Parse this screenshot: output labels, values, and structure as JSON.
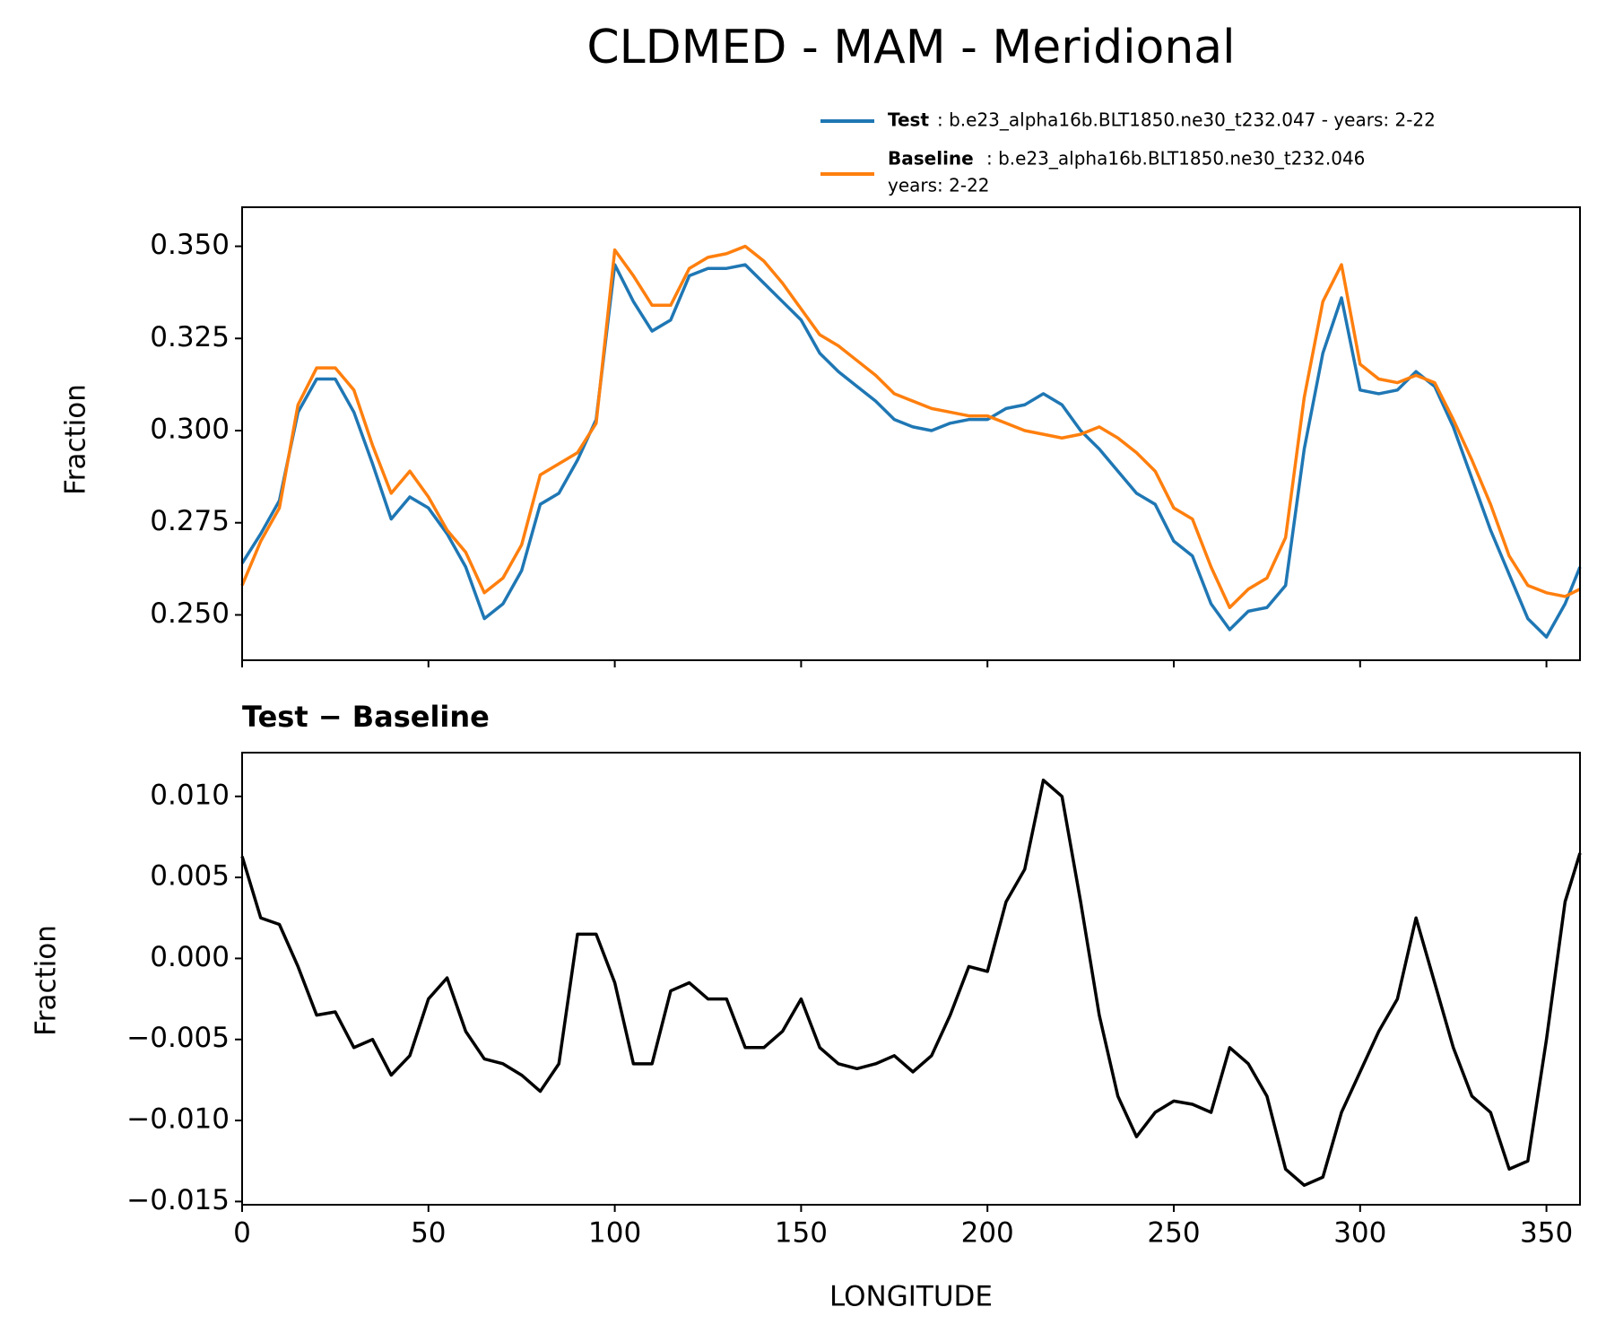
{
  "chart_data": [
    {
      "type": "line",
      "title": "CLDMED - MAM - Meridional",
      "ylabel": "Fraction",
      "x": [
        0,
        5,
        10,
        15,
        20,
        25,
        30,
        35,
        40,
        45,
        50,
        55,
        60,
        65,
        70,
        75,
        80,
        85,
        90,
        95,
        100,
        105,
        110,
        115,
        120,
        125,
        130,
        135,
        140,
        145,
        150,
        155,
        160,
        165,
        170,
        175,
        180,
        185,
        190,
        195,
        200,
        205,
        210,
        215,
        220,
        225,
        230,
        235,
        240,
        245,
        250,
        255,
        260,
        265,
        270,
        275,
        280,
        285,
        290,
        295,
        300,
        305,
        310,
        315,
        320,
        325,
        330,
        335,
        340,
        345,
        350,
        355,
        359
      ],
      "series": [
        {
          "name": "Test",
          "label": ": b.e23_alpha16b.BLT1850.ne30_t232.047 - years: 2-22",
          "color": "#1f77b4",
          "values": [
            0.264,
            0.272,
            0.281,
            0.305,
            0.314,
            0.314,
            0.305,
            0.291,
            0.276,
            0.282,
            0.279,
            0.272,
            0.263,
            0.249,
            0.253,
            0.262,
            0.28,
            0.283,
            0.292,
            0.303,
            0.345,
            0.335,
            0.327,
            0.33,
            0.342,
            0.344,
            0.344,
            0.345,
            0.34,
            0.335,
            0.33,
            0.321,
            0.316,
            0.312,
            0.308,
            0.303,
            0.301,
            0.3,
            0.302,
            0.303,
            0.303,
            0.306,
            0.307,
            0.31,
            0.307,
            0.3,
            0.295,
            0.289,
            0.283,
            0.28,
            0.27,
            0.266,
            0.253,
            0.246,
            0.251,
            0.252,
            0.258,
            0.295,
            0.321,
            0.336,
            0.311,
            0.31,
            0.311,
            0.316,
            0.312,
            0.301,
            0.287,
            0.273,
            0.261,
            0.249,
            0.244,
            0.253,
            0.263
          ]
        },
        {
          "name": "Baseline",
          "label_lines": [
            ": b.e23_alpha16b.BLT1850.ne30_t232.046",
            "years: 2-22"
          ],
          "color": "#ff7f0e",
          "values": [
            0.258,
            0.27,
            0.279,
            0.307,
            0.317,
            0.317,
            0.311,
            0.296,
            0.283,
            0.289,
            0.282,
            0.273,
            0.267,
            0.256,
            0.26,
            0.269,
            0.288,
            0.291,
            0.294,
            0.302,
            0.349,
            0.342,
            0.334,
            0.334,
            0.344,
            0.347,
            0.348,
            0.35,
            0.346,
            0.34,
            0.333,
            0.326,
            0.323,
            0.319,
            0.315,
            0.31,
            0.308,
            0.306,
            0.305,
            0.304,
            0.304,
            0.302,
            0.3,
            0.299,
            0.298,
            0.299,
            0.301,
            0.298,
            0.294,
            0.289,
            0.279,
            0.276,
            0.263,
            0.252,
            0.257,
            0.26,
            0.271,
            0.309,
            0.335,
            0.345,
            0.318,
            0.314,
            0.313,
            0.315,
            0.313,
            0.303,
            0.292,
            0.28,
            0.266,
            0.258,
            0.256,
            0.255,
            0.257
          ]
        }
      ],
      "xlim": [
        0,
        359
      ],
      "xticks": [
        0,
        50,
        100,
        150,
        200,
        250,
        300,
        350
      ],
      "ylim": [
        0.2377,
        0.3606
      ],
      "yticks": [
        {
          "value": 0.25,
          "label": "0.250"
        },
        {
          "value": 0.275,
          "label": "0.275"
        },
        {
          "value": 0.3,
          "label": "0.300"
        },
        {
          "value": 0.325,
          "label": "0.325"
        },
        {
          "value": 0.35,
          "label": "0.350"
        }
      ]
    },
    {
      "type": "line",
      "title": "Test − Baseline",
      "xlabel": "LONGITUDE",
      "ylabel": "Fraction",
      "x": [
        0,
        5,
        10,
        15,
        20,
        25,
        30,
        35,
        40,
        45,
        50,
        55,
        60,
        65,
        70,
        75,
        80,
        85,
        90,
        95,
        100,
        105,
        110,
        115,
        120,
        125,
        130,
        135,
        140,
        145,
        150,
        155,
        160,
        165,
        170,
        175,
        180,
        185,
        190,
        195,
        200,
        205,
        210,
        215,
        220,
        225,
        230,
        235,
        240,
        245,
        250,
        255,
        260,
        265,
        270,
        275,
        280,
        285,
        290,
        295,
        300,
        305,
        310,
        315,
        320,
        325,
        330,
        335,
        340,
        345,
        350,
        355,
        359
      ],
      "series": [
        {
          "color": "#000000",
          "values": [
            0.0063,
            0.0025,
            0.0021,
            -0.0005,
            -0.0035,
            -0.0033,
            -0.0055,
            -0.005,
            -0.0072,
            -0.006,
            -0.0025,
            -0.0012,
            -0.0045,
            -0.0062,
            -0.0065,
            -0.0072,
            -0.0082,
            -0.0065,
            0.0015,
            0.0015,
            -0.0015,
            -0.0065,
            -0.0065,
            -0.002,
            -0.0015,
            -0.0025,
            -0.0025,
            -0.0055,
            -0.0055,
            -0.0045,
            -0.0025,
            -0.0055,
            -0.0065,
            -0.0068,
            -0.0065,
            -0.006,
            -0.007,
            -0.006,
            -0.0035,
            -0.0005,
            -0.0008,
            0.0035,
            0.0055,
            0.011,
            0.01,
            0.0035,
            -0.0035,
            -0.0085,
            -0.011,
            -0.0095,
            -0.0088,
            -0.009,
            -0.0095,
            -0.0055,
            -0.0065,
            -0.0085,
            -0.013,
            -0.014,
            -0.0135,
            -0.0095,
            -0.007,
            -0.0045,
            -0.0025,
            0.0025,
            -0.0015,
            -0.0055,
            -0.0085,
            -0.0095,
            -0.013,
            -0.0125,
            -0.005,
            0.0035,
            0.0065
          ]
        }
      ],
      "xlim": [
        0,
        359
      ],
      "xticks": [
        0,
        50,
        100,
        150,
        200,
        250,
        300,
        350
      ],
      "ylim": [
        -0.0152,
        0.0127
      ],
      "yticks": [
        {
          "value": -0.015,
          "label": "−0.015"
        },
        {
          "value": -0.01,
          "label": "−0.010"
        },
        {
          "value": -0.005,
          "label": "−0.005"
        },
        {
          "value": 0,
          "label": "0.000"
        },
        {
          "value": 0.005,
          "label": "0.005"
        },
        {
          "value": 0.01,
          "label": "0.010"
        }
      ]
    }
  ]
}
